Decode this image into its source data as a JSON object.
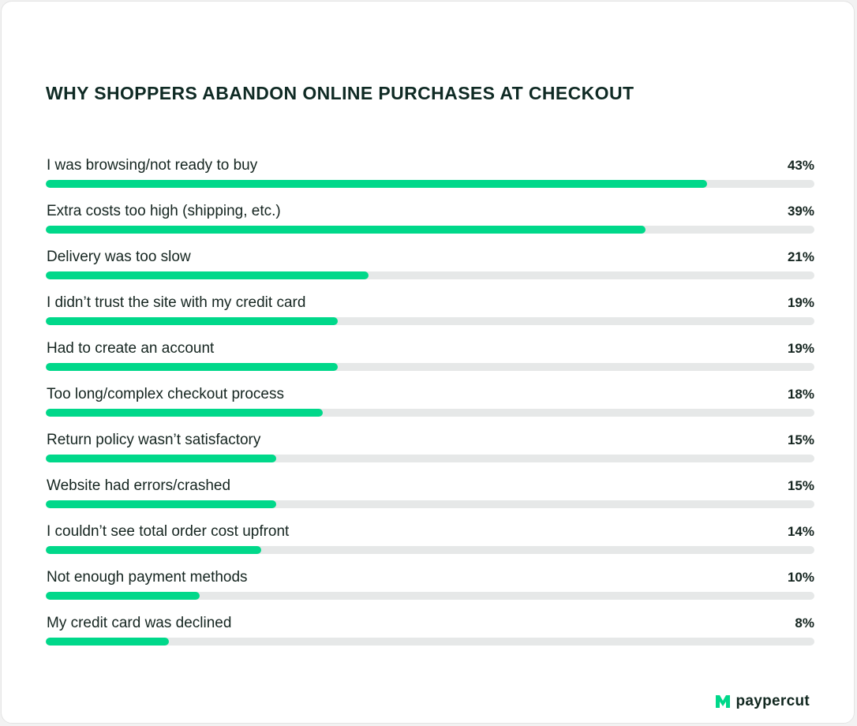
{
  "colors": {
    "accent": "#00d88a",
    "track": "#e6e8e8",
    "text": "#152520"
  },
  "brand": {
    "name": "paypercut",
    "icon": "paypercut-logo-icon"
  },
  "chart_data": {
    "type": "bar",
    "orientation": "horizontal",
    "title": "WHY SHOPPERS ABANDON ONLINE PURCHASES AT CHECKOUT",
    "xlim": [
      0,
      50
    ],
    "grid": false,
    "categories": [
      "I was browsing/not ready to buy",
      "Extra costs too high (shipping, etc.)",
      "Delivery was too slow",
      "I didn’t trust the site with my credit card",
      "Had to create an account",
      "Too long/complex checkout process",
      "Return policy wasn’t satisfactory",
      "Website had errors/crashed",
      "I couldn’t see total order cost upfront",
      "Not enough payment methods",
      "My credit card was declined"
    ],
    "values": [
      43,
      39,
      21,
      19,
      19,
      18,
      15,
      15,
      14,
      10,
      8
    ],
    "labels": [
      "43%",
      "39%",
      "21%",
      "19%",
      "19%",
      "18%",
      "15%",
      "15%",
      "14%",
      "10%",
      "8%"
    ]
  }
}
